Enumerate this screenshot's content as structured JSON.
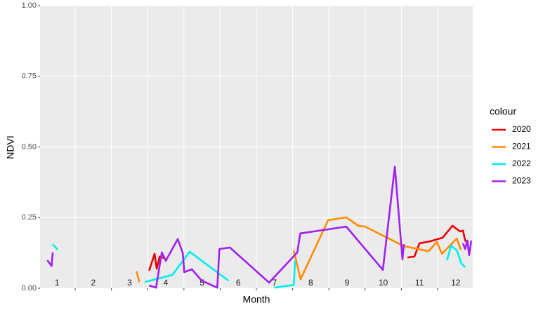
{
  "chart_data": {
    "type": "line",
    "x_label": "Month",
    "y_label": "NDVI",
    "xlim": [
      0.53,
      12.47
    ],
    "ylim": [
      0,
      1
    ],
    "yticks": [
      {
        "value": 0,
        "label": "0.00"
      },
      {
        "value": 0.25,
        "label": "0.25"
      },
      {
        "value": 0.5,
        "label": "0.50"
      },
      {
        "value": 0.75,
        "label": "0.75"
      },
      {
        "value": 1,
        "label": "1.00"
      }
    ],
    "xticks": [
      1.5,
      2.5,
      3.5,
      4.5,
      5.5,
      6.5,
      7.5,
      8.5,
      9.5,
      10.5,
      11.5
    ],
    "month_labels": [
      1,
      2,
      3,
      4,
      5,
      6,
      7,
      8,
      9,
      10,
      11,
      12
    ],
    "grid": true,
    "legend_title": "colour",
    "legend_position": "right",
    "series": [
      {
        "name": "2020",
        "color": "#ee0000",
        "x": [
          3.54,
          3.69,
          3.75,
          3.83,
          3.95,
          null,
          10.67,
          10.86,
          11.0,
          11.29,
          11.64,
          11.91,
          12.12,
          12.2,
          12.26,
          12.34
        ],
        "values": [
          0.062,
          0.122,
          0.069,
          0.112,
          0.107,
          null,
          0.109,
          0.112,
          0.159,
          0.166,
          0.179,
          0.221,
          0.201,
          0.204,
          0.169,
          0.16
        ]
      },
      {
        "name": "2021",
        "color": "#ff8c00",
        "x": [
          3.19,
          3.27,
          null,
          7.53,
          7.72,
          8.48,
          8.98,
          9.31,
          9.5,
          10.57,
          11.25,
          11.48,
          11.62,
          12.03,
          12.14
        ],
        "values": [
          0.06,
          0.022,
          null,
          0.134,
          0.032,
          0.241,
          0.251,
          0.221,
          0.218,
          0.149,
          0.131,
          0.164,
          0.122,
          0.176,
          0.136
        ]
      },
      {
        "name": "2022",
        "color": "#00eeee",
        "x": [
          0.88,
          1.02,
          null,
          3.42,
          4.18,
          4.66,
          5.73,
          null,
          6.99,
          7.53,
          7.57,
          null,
          11.76,
          11.87,
          12.03,
          12.16,
          12.26
        ],
        "values": [
          0.156,
          0.136,
          null,
          0.022,
          0.047,
          0.129,
          0.027,
          null,
          0.002,
          0.012,
          0.097,
          null,
          0.099,
          0.151,
          0.134,
          0.087,
          0.074
        ]
      },
      {
        "name": "2023",
        "color": "#a020f0",
        "x": [
          0.73,
          0.85,
          0.88,
          null,
          3.54,
          3.73,
          3.89,
          4.0,
          4.33,
          4.47,
          4.51,
          4.72,
          4.99,
          5.42,
          5.48,
          5.77,
          6.85,
          7.63,
          7.71,
          8.98,
          9.99,
          10.32,
          10.53,
          10.57,
          null,
          12.2,
          12.26,
          12.32,
          12.37,
          12.43
        ],
        "values": [
          0.099,
          0.079,
          0.127,
          null,
          0.01,
          0.002,
          0.127,
          0.097,
          0.174,
          0.124,
          0.057,
          0.067,
          0.027,
          0.002,
          0.139,
          0.144,
          0.02,
          0.127,
          0.194,
          0.218,
          0.065,
          0.43,
          0.102,
          0.156,
          null,
          0.159,
          0.139,
          0.169,
          0.117,
          0.169
        ]
      }
    ]
  }
}
